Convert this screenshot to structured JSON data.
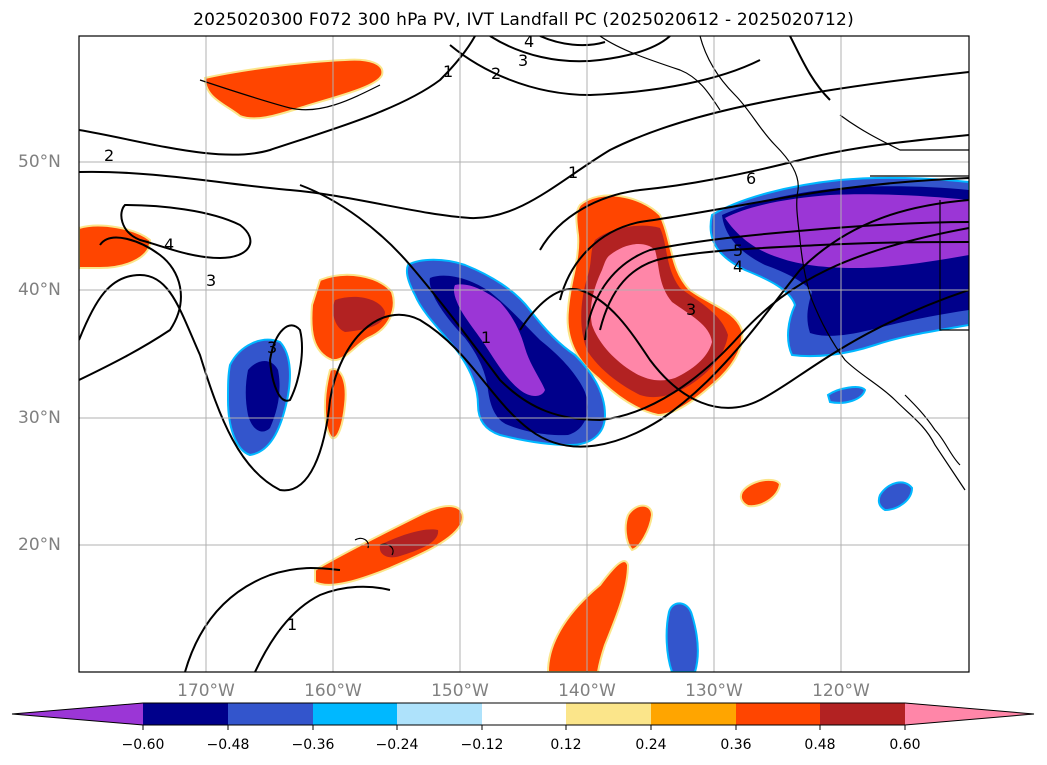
{
  "title": "2025020300 F072 300 hPa PV, IVT Landfall PC (2025020612 - 2025020712)",
  "lat_labels": [
    "50°N",
    "40°N",
    "30°N",
    "20°N"
  ],
  "lon_labels": [
    "170°W",
    "160°W",
    "150°W",
    "140°W",
    "130°W",
    "120°W"
  ],
  "map_extent": {
    "lon_min": -180,
    "lon_max": -110,
    "lat_min": 10,
    "lat_max": 60
  },
  "contour_labels": [
    "4",
    "3",
    "2",
    "1",
    "2",
    "4",
    "3",
    "3",
    "1",
    "1",
    "6",
    "5",
    "4",
    "3",
    "1"
  ],
  "colorbar": {
    "ticks": [
      "−0.60",
      "−0.48",
      "−0.36",
      "−0.24",
      "−0.12",
      "0.12",
      "0.24",
      "0.36",
      "0.48",
      "0.60"
    ],
    "colors": [
      "#9b36d6",
      "#00008b",
      "#3355cc",
      "#00b8ff",
      "#aee2fb",
      "#ffffff",
      "#fbe58a",
      "#ffa500",
      "#ff4500",
      "#b22222",
      "#ff86a8"
    ]
  }
}
